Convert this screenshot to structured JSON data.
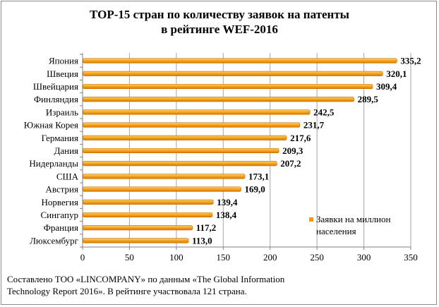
{
  "chart_data": {
    "type": "bar",
    "orientation": "horizontal",
    "title_line1": "ТОР-15 стран по количеству заявок на патенты",
    "title_line2": "в рейтинге WEF-2016",
    "categories": [
      "Япония",
      "Швеция",
      "Швейцария",
      "Финляндия",
      "Израиль",
      "Южная Корея",
      "Германия",
      "Дания",
      "Нидерланды",
      "США",
      "Австрия",
      "Норвегия",
      "Сингапур",
      "Франция",
      "Люксембург"
    ],
    "value_labels": [
      "335,2",
      "320,1",
      "309,4",
      "289,5",
      "242,5",
      "231,7",
      "217,6",
      "209,3",
      "207,2",
      "173,1",
      "169,0",
      "139,4",
      "138,4",
      "117,2",
      "113,0"
    ],
    "series": [
      {
        "name": "Заявки на миллион населения",
        "values": [
          335.2,
          320.1,
          309.4,
          289.5,
          242.5,
          231.7,
          217.6,
          209.3,
          207.2,
          173.1,
          169.0,
          139.4,
          138.4,
          117.2,
          113.0
        ],
        "color": "#f59b00"
      }
    ],
    "xlim": [
      0,
      350
    ],
    "xticks": [
      0,
      50,
      100,
      150,
      200,
      250,
      300,
      350
    ],
    "grid": "vertical",
    "legend_position": "bottom-right",
    "xlabel": "",
    "ylabel": ""
  },
  "legend": {
    "label_line1": "Заявки на миллион",
    "label_line2": "населения"
  },
  "footnote": {
    "line1": "Составлено ТОО «LINCOMPANY» по данным  «The Global Information",
    "line2": "Technology Report 2016». В рейтинге участвовала 121 страна."
  }
}
